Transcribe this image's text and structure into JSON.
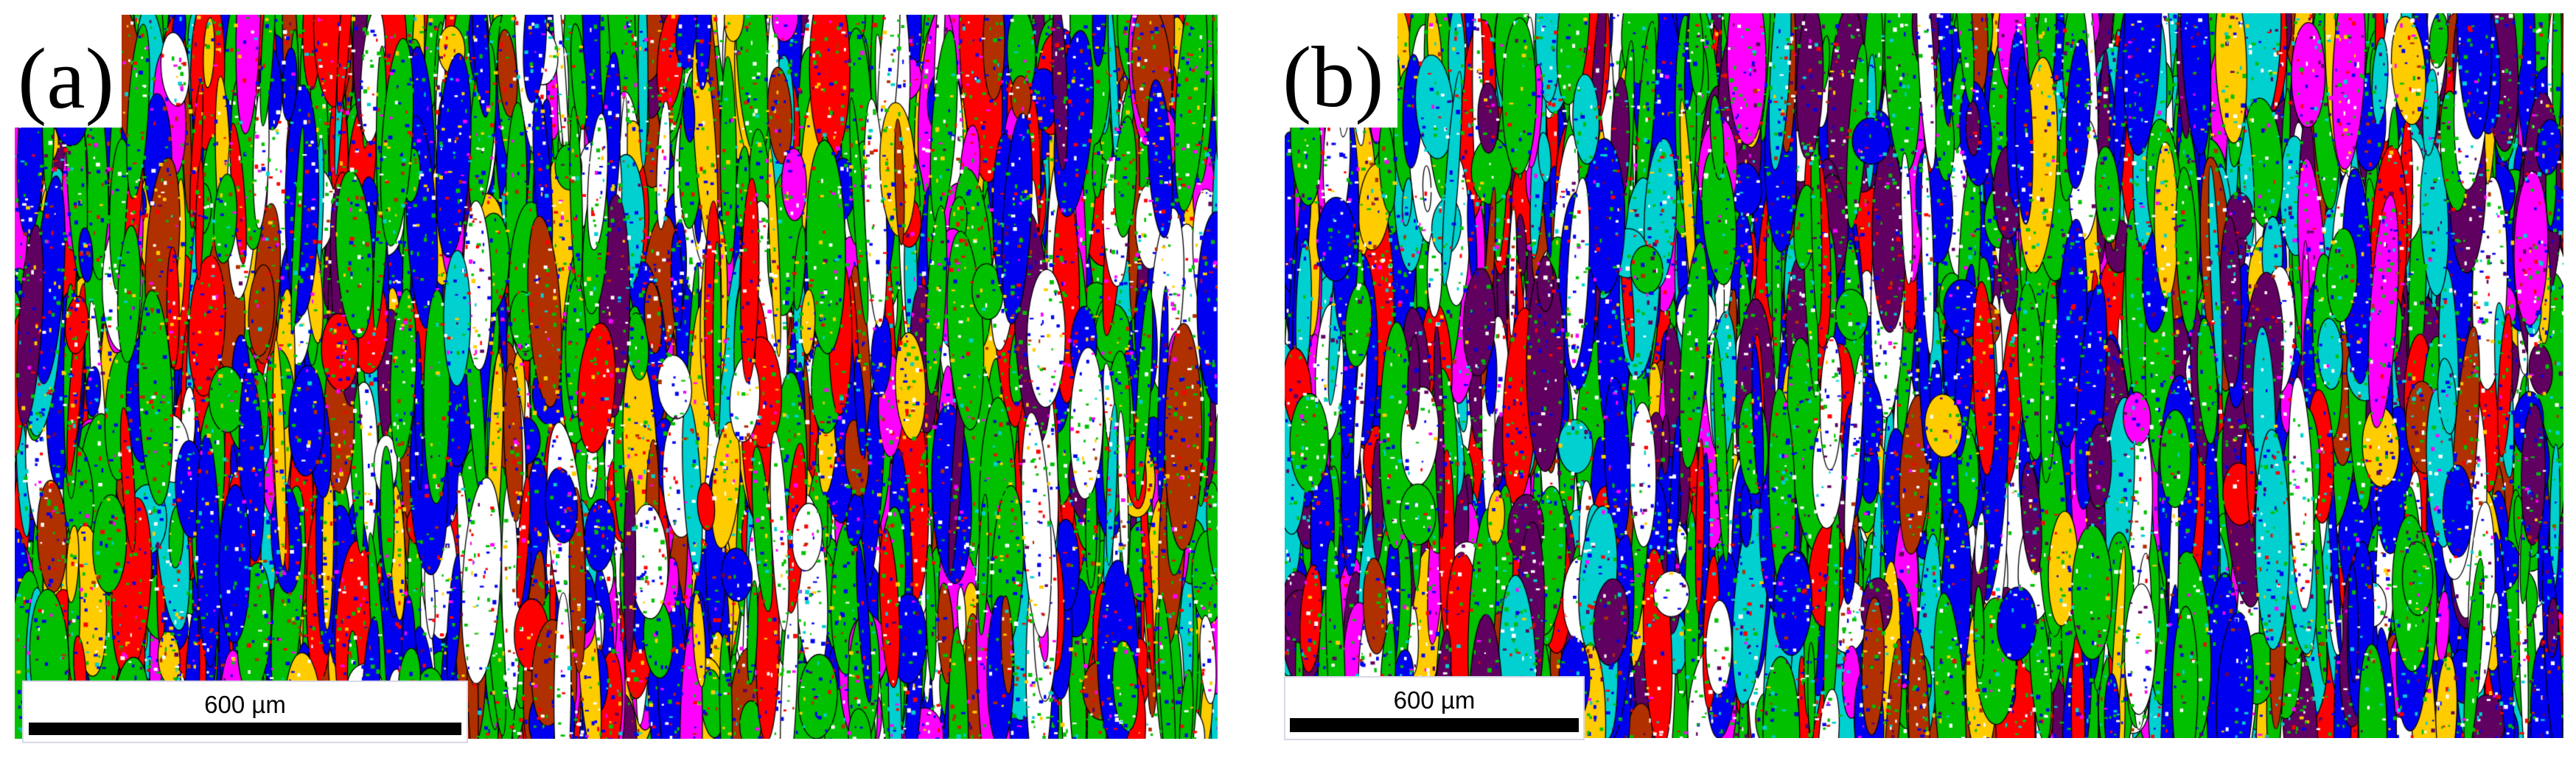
{
  "figure": {
    "description": "EBSD grain orientation maps, two panels side by side",
    "palette": [
      "#00c000",
      "#0000f0",
      "#ffffff",
      "#ff0000",
      "#ff00ff",
      "#00d0d0",
      "#ffcc00",
      "#b03000",
      "#600060"
    ],
    "boundary_color": "#000000"
  },
  "panels": [
    {
      "label": "(a)",
      "scalebar": {
        "text": "600 µm"
      }
    },
    {
      "label": "(b)",
      "scalebar": {
        "text": "600 µm"
      }
    }
  ]
}
